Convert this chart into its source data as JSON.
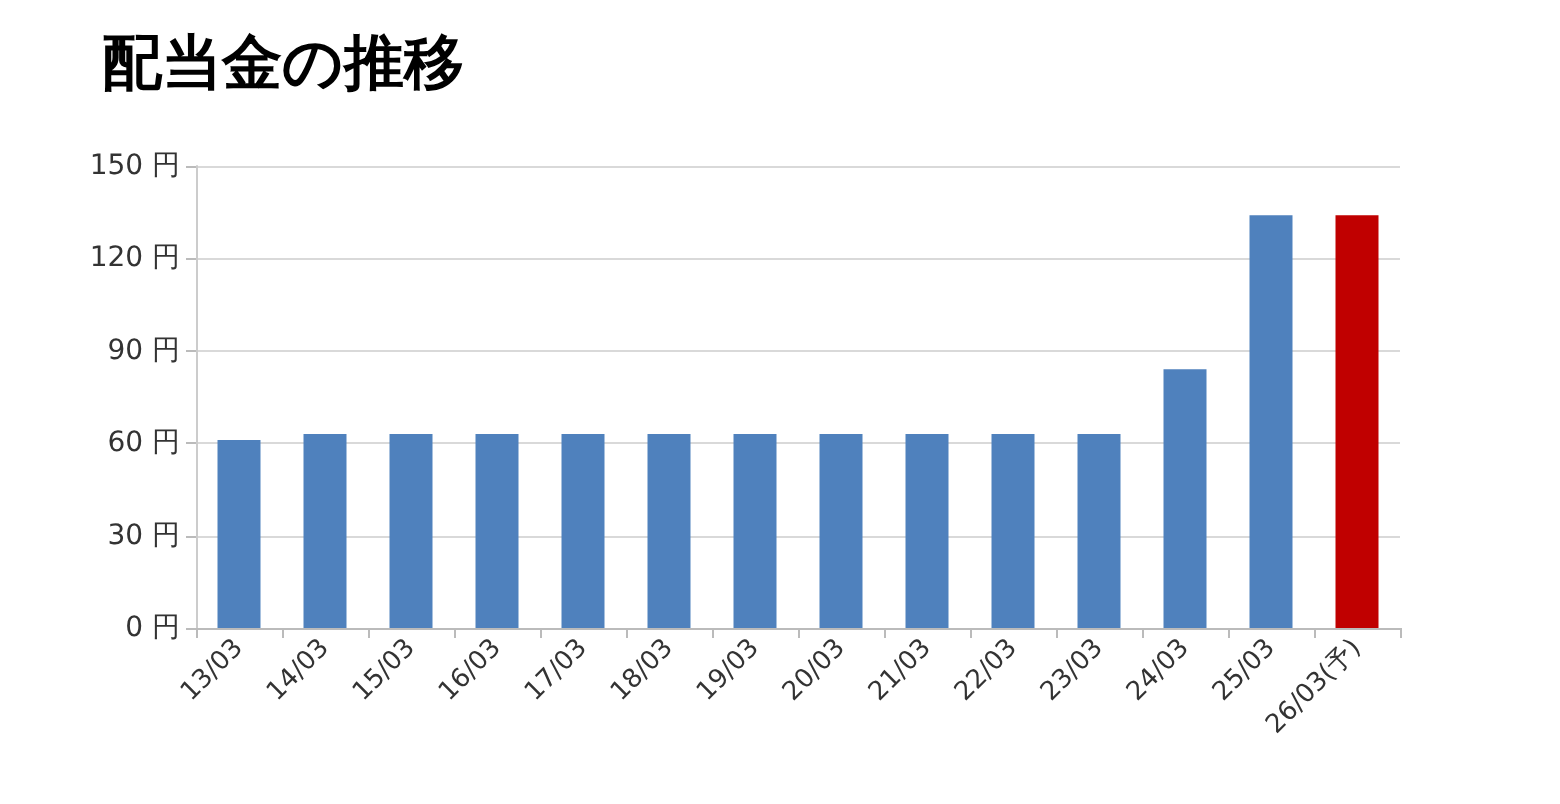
{
  "chart_data": {
    "type": "bar",
    "title": "配当金の推移",
    "categories": [
      "13/03",
      "14/03",
      "15/03",
      "16/03",
      "17/03",
      "18/03",
      "19/03",
      "20/03",
      "21/03",
      "22/03",
      "23/03",
      "24/03",
      "25/03",
      "26/03(予)"
    ],
    "values": [
      61,
      63,
      63,
      63,
      63,
      63,
      63,
      63,
      63,
      63,
      63,
      84,
      134,
      134
    ],
    "colors": [
      "#4f81bd",
      "#4f81bd",
      "#4f81bd",
      "#4f81bd",
      "#4f81bd",
      "#4f81bd",
      "#4f81bd",
      "#4f81bd",
      "#4f81bd",
      "#4f81bd",
      "#4f81bd",
      "#4f81bd",
      "#4f81bd",
      "#c00000"
    ],
    "ylim": [
      0,
      150
    ],
    "yticks": [
      {
        "value": 0,
        "label": "0 円"
      },
      {
        "value": 30,
        "label": "30 円"
      },
      {
        "value": 60,
        "label": "60 円"
      },
      {
        "value": 90,
        "label": "90 円"
      },
      {
        "value": 120,
        "label": "120 円"
      },
      {
        "value": 150,
        "label": "150 円"
      }
    ],
    "grid": "y"
  }
}
